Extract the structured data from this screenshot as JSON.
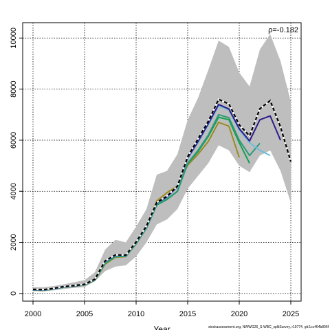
{
  "chart_data": {
    "type": "line",
    "xlabel": "Year",
    "ylabel": "",
    "xlim": [
      1999,
      2026
    ],
    "ylim": [
      -300,
      10600
    ],
    "xticks": [
      2000,
      2005,
      2010,
      2015,
      2020,
      2025
    ],
    "yticks": [
      0,
      2000,
      4000,
      6000,
      8000,
      10000
    ],
    "grid": true,
    "annotation": "ρ=-0.182",
    "footer": "stockassessment.org, NWWG26_S-WBC_splitSurvey, r19774, git:1cc464b806f",
    "band": {
      "x": [
        2000,
        2001,
        2002,
        2003,
        2004,
        2005,
        2006,
        2007,
        2008,
        2009,
        2010,
        2011,
        2012,
        2013,
        2014,
        2015,
        2016,
        2017,
        2018,
        2019,
        2020,
        2021,
        2022,
        2023,
        2024,
        2025
      ],
      "lower": [
        90,
        80,
        120,
        180,
        220,
        250,
        480,
        880,
        1050,
        1100,
        1450,
        2000,
        2700,
        2900,
        3300,
        4100,
        4600,
        5100,
        5800,
        5600,
        5000,
        4750,
        5400,
        5600,
        4800,
        3550
      ],
      "upper": [
        250,
        240,
        290,
        360,
        440,
        520,
        830,
        1720,
        2100,
        2000,
        2620,
        3300,
        4650,
        4800,
        5450,
        6800,
        7650,
        8750,
        9900,
        9650,
        8650,
        8100,
        9550,
        10150,
        9100,
        7500
      ]
    },
    "series": [
      {
        "color": "#000000",
        "dashed": true,
        "x": [
          2000,
          2001,
          2002,
          2003,
          2004,
          2005,
          2006,
          2007,
          2008,
          2009,
          2010,
          2011,
          2012,
          2013,
          2014,
          2015,
          2016,
          2017,
          2018,
          2019,
          2020,
          2021,
          2022,
          2023,
          2024,
          2025
        ],
        "y": [
          160,
          150,
          200,
          270,
          310,
          360,
          560,
          1280,
          1510,
          1500,
          2020,
          2640,
          3560,
          3810,
          4200,
          5350,
          6050,
          6740,
          7600,
          7420,
          6600,
          6170,
          7230,
          7550,
          6520,
          5160
        ]
      },
      {
        "color": "#2e1a8c",
        "dashed": false,
        "x": [
          2000,
          2001,
          2002,
          2003,
          2004,
          2005,
          2006,
          2007,
          2008,
          2009,
          2010,
          2011,
          2012,
          2013,
          2014,
          2015,
          2016,
          2017,
          2018,
          2019,
          2020,
          2021,
          2022,
          2023,
          2024
        ],
        "y": [
          150,
          140,
          190,
          260,
          300,
          350,
          550,
          1260,
          1500,
          1490,
          2000,
          2620,
          3540,
          3780,
          4180,
          5300,
          5950,
          6650,
          7400,
          7220,
          6450,
          5970,
          6800,
          6950,
          6000
        ]
      },
      {
        "color": "#6bbedc",
        "dashed": false,
        "x": [
          2000,
          2001,
          2002,
          2003,
          2004,
          2005,
          2006,
          2007,
          2008,
          2009,
          2010,
          2011,
          2012,
          2013,
          2014,
          2015,
          2016,
          2017,
          2018,
          2019,
          2020,
          2021,
          2022,
          2023
        ],
        "y": [
          145,
          135,
          185,
          255,
          295,
          345,
          540,
          1250,
          1490,
          1480,
          1990,
          2610,
          3530,
          3770,
          4170,
          5280,
          5900,
          6600,
          7350,
          7180,
          6400,
          5900,
          5600,
          5400
        ]
      },
      {
        "color": "#2a9a7a",
        "dashed": false,
        "x": [
          2000,
          2001,
          2002,
          2003,
          2004,
          2005,
          2006,
          2007,
          2008,
          2009,
          2010,
          2011,
          2012,
          2013,
          2014,
          2015,
          2016,
          2017,
          2018,
          2019,
          2020,
          2021,
          2022
        ],
        "y": [
          140,
          130,
          180,
          250,
          290,
          340,
          530,
          1200,
          1450,
          1460,
          1960,
          2560,
          3480,
          3700,
          4000,
          5100,
          5600,
          6200,
          7000,
          6880,
          6000,
          5400,
          5880
        ]
      },
      {
        "color": "#11a14a",
        "dashed": false,
        "x": [
          2000,
          2001,
          2002,
          2003,
          2004,
          2005,
          2006,
          2007,
          2008,
          2009,
          2010,
          2011,
          2012,
          2013,
          2014,
          2015,
          2016,
          2017,
          2018,
          2019,
          2020,
          2021
        ],
        "y": [
          135,
          125,
          175,
          245,
          285,
          335,
          520,
          1180,
          1440,
          1450,
          1950,
          2550,
          3460,
          3680,
          3990,
          5080,
          5550,
          6150,
          6900,
          6800,
          5900,
          5100
        ]
      },
      {
        "color": "#9a8a20",
        "dashed": false,
        "x": [
          2000,
          2001,
          2002,
          2003,
          2004,
          2005,
          2006,
          2007,
          2008,
          2009,
          2010,
          2011,
          2012,
          2013,
          2014,
          2015,
          2016,
          2017,
          2018,
          2019,
          2020
        ],
        "y": [
          130,
          120,
          170,
          240,
          280,
          330,
          510,
          1150,
          1420,
          1440,
          1940,
          2560,
          3620,
          3950,
          4200,
          5020,
          5450,
          5950,
          6700,
          6550,
          5320
        ]
      }
    ]
  }
}
